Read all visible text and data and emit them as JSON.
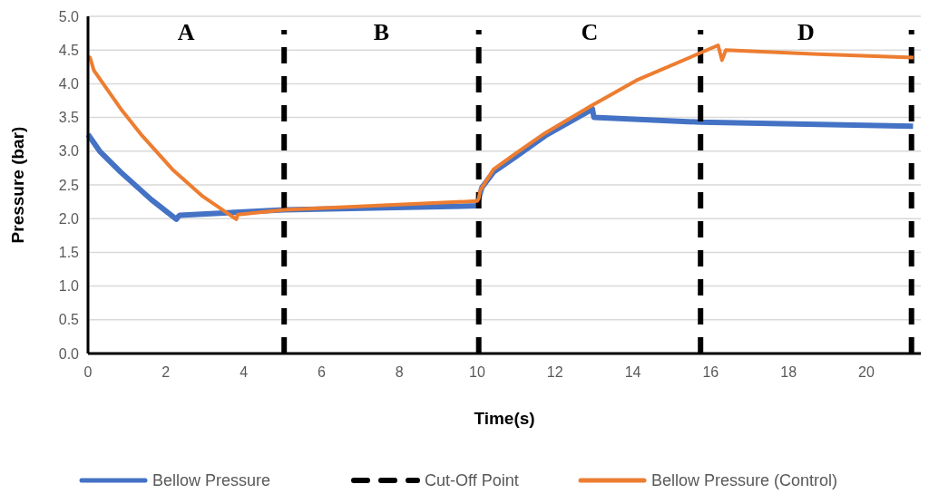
{
  "chart_data": {
    "type": "line",
    "xlabel": "Time(s)",
    "ylabel": "Pressure (bar)",
    "xlim": [
      0,
      21.4
    ],
    "xticks": [
      0,
      2,
      4,
      6,
      8,
      10,
      12,
      14,
      16,
      18,
      20
    ],
    "ylim": [
      0,
      5
    ],
    "yticks": [
      {
        "value": 0,
        "label": "0.0"
      },
      {
        "value": 0.5,
        "label": "0.5"
      },
      {
        "value": 1,
        "label": "1.0"
      },
      {
        "value": 1.5,
        "label": "1.5"
      },
      {
        "value": 2,
        "label": "2.0"
      },
      {
        "value": 2.5,
        "label": "2.5"
      },
      {
        "value": 3,
        "label": "3.0"
      },
      {
        "value": 3.5,
        "label": "3.5"
      },
      {
        "value": 4,
        "label": "4.0"
      },
      {
        "value": 4.5,
        "label": "4.5"
      },
      {
        "value": 5,
        "label": "5.0"
      }
    ],
    "grid": "y",
    "legend": "bottom",
    "marker": "none",
    "series": [
      {
        "name": "Bellow Pressure",
        "color": "#4472c4",
        "line_style": "solid",
        "x": [
          0,
          0.3,
          0.84,
          1.63,
          2.27,
          2.32,
          2.36,
          5.04,
          10.0,
          10.04,
          10.12,
          10.42,
          10.97,
          11.75,
          12.92,
          12.96,
          13.0,
          15.74,
          21.2
        ],
        "values": [
          3.25,
          3.0,
          2.69,
          2.28,
          1.99,
          2.03,
          2.05,
          2.13,
          2.19,
          2.3,
          2.46,
          2.69,
          2.91,
          3.23,
          3.61,
          3.63,
          3.5,
          3.43,
          3.37
        ]
      },
      {
        "name": "Cut-Off Point",
        "color": "#000000",
        "line_style": "dashed",
        "x": [
          5.04,
          5.04,
          null,
          10.04,
          10.04,
          null,
          15.74,
          15.74,
          null,
          21.16,
          21.16
        ],
        "values": [
          0,
          4.8,
          null,
          0,
          4.8,
          null,
          0,
          4.8,
          null,
          0,
          4.8
        ]
      },
      {
        "name": "Bellow Pressure (Control)",
        "color": "#ed7d31",
        "line_style": "solid",
        "x": [
          0,
          0.05,
          0.15,
          0.84,
          1.39,
          2.17,
          2.95,
          3.81,
          3.85,
          5.04,
          10.0,
          10.04,
          10.08,
          10.42,
          10.97,
          11.75,
          12.92,
          14.09,
          16.19,
          16.29,
          16.39,
          18.76,
          21.21
        ],
        "values": [
          4.4,
          4.39,
          4.2,
          3.63,
          3.23,
          2.73,
          2.33,
          1.99,
          2.06,
          2.13,
          2.26,
          2.3,
          2.42,
          2.73,
          2.96,
          3.27,
          3.67,
          4.05,
          4.57,
          4.35,
          4.5,
          4.44,
          4.39
        ]
      }
    ],
    "annotations": [
      "A",
      "B",
      "C",
      "D"
    ]
  }
}
